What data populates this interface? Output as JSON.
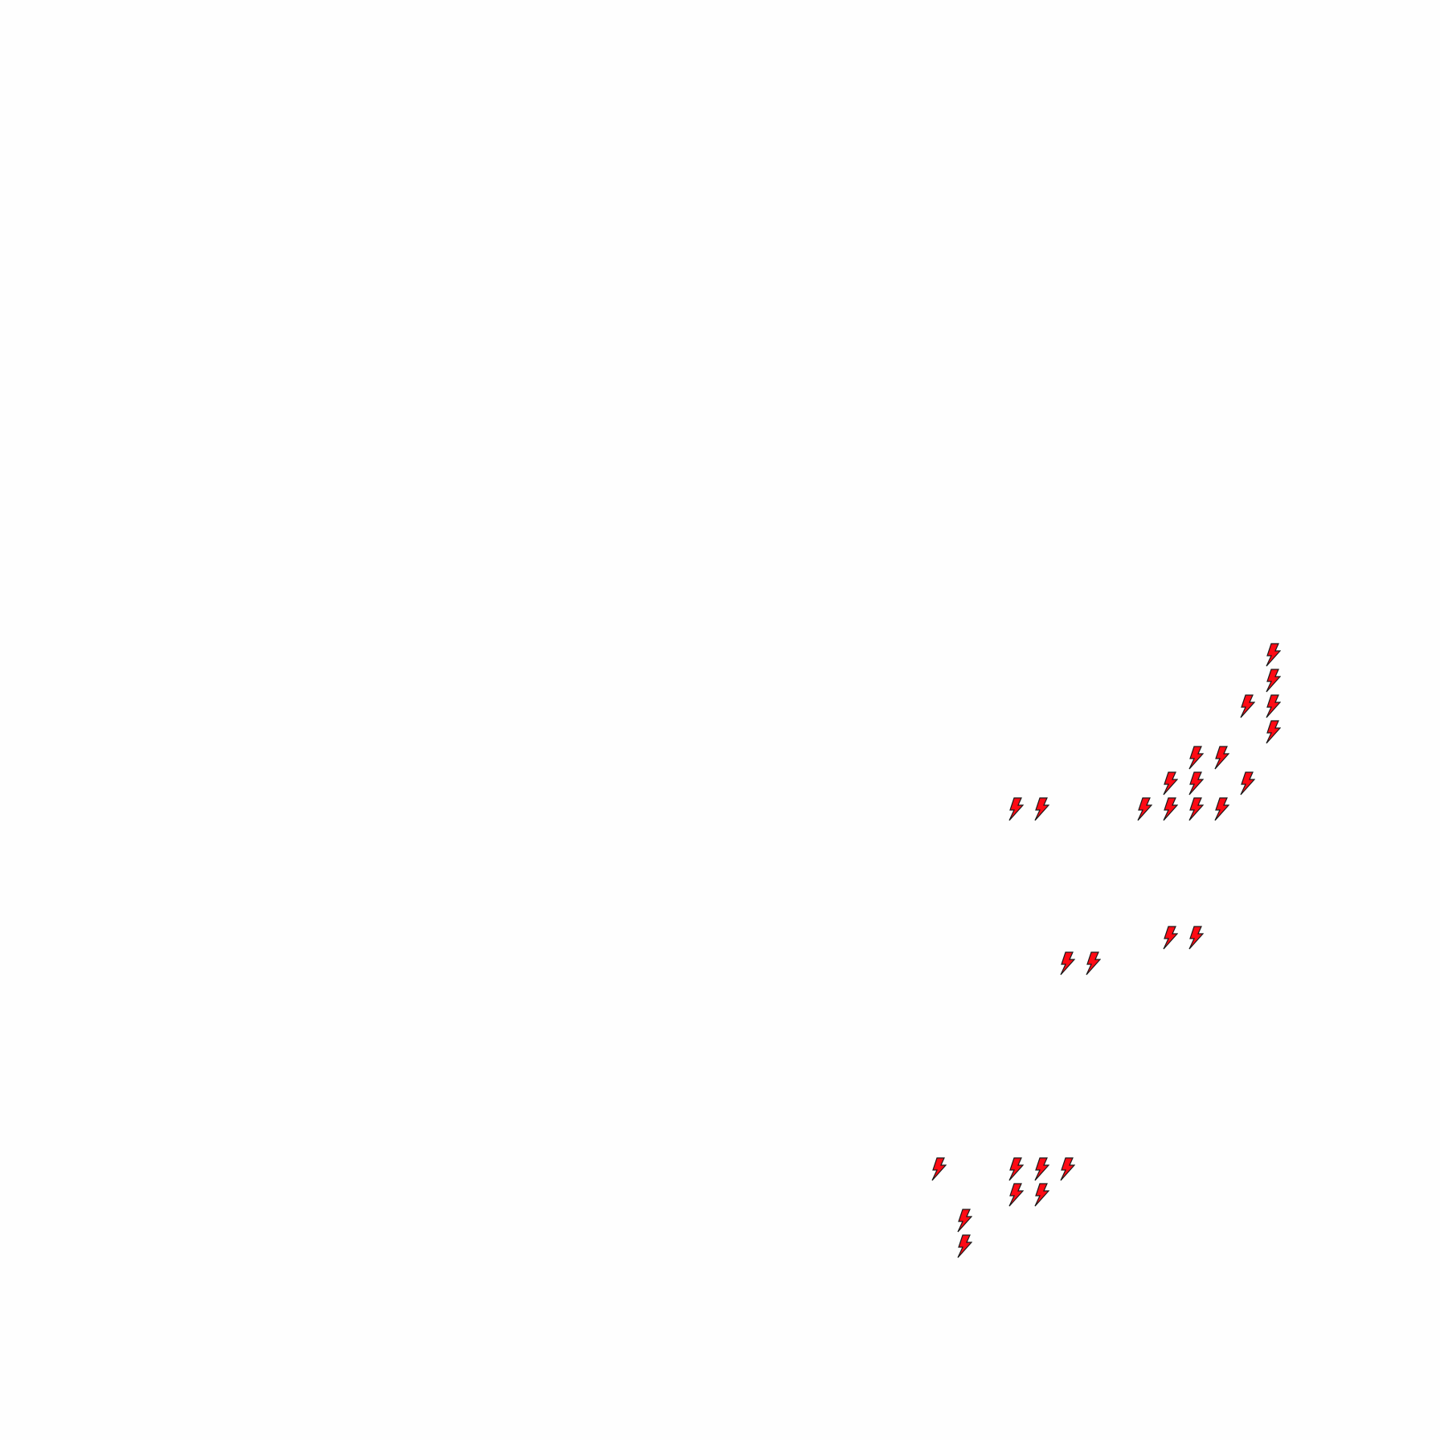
{
  "map": {
    "marker_icon": "lightning-bolt-icon",
    "marker_fill": "#ff0a14",
    "marker_stroke": "#1a1a1a",
    "marker_count": 28
  }
}
